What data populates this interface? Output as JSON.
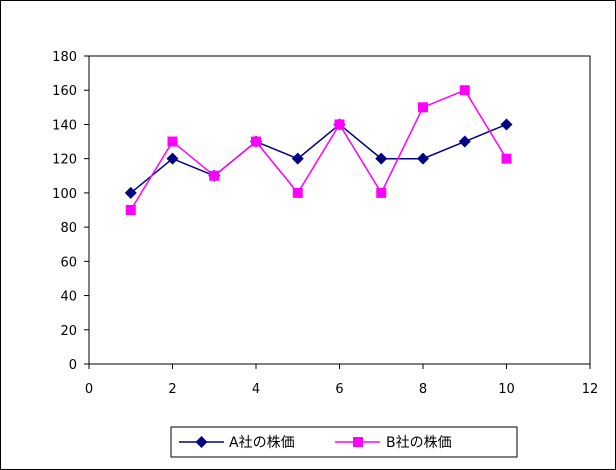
{
  "chart_data": {
    "type": "line",
    "xlim": [
      0,
      12
    ],
    "ylim": [
      0,
      180
    ],
    "xticks": [
      0,
      2,
      4,
      6,
      8,
      10,
      12
    ],
    "yticks": [
      0,
      20,
      40,
      60,
      80,
      100,
      120,
      140,
      160,
      180
    ],
    "x_tick_labels": [
      "0",
      "2",
      "4",
      "6",
      "8",
      "10",
      "12"
    ],
    "y_tick_labels": [
      "0",
      "20",
      "40",
      "60",
      "80",
      "100",
      "120",
      "140",
      "160",
      "180"
    ],
    "grid": false,
    "legend_position": "bottom",
    "series": [
      {
        "name": "A社の株価",
        "color": "#000080",
        "marker": "diamond",
        "x": [
          1,
          2,
          3,
          4,
          5,
          6,
          7,
          8,
          9,
          10
        ],
        "y": [
          100,
          120,
          110,
          130,
          120,
          140,
          120,
          120,
          130,
          140
        ]
      },
      {
        "name": "B社の株価",
        "color": "#ff00ff",
        "marker": "square",
        "x": [
          1,
          2,
          3,
          4,
          5,
          6,
          7,
          8,
          9,
          10
        ],
        "y": [
          90,
          130,
          110,
          130,
          100,
          140,
          100,
          150,
          160,
          120
        ]
      }
    ]
  }
}
